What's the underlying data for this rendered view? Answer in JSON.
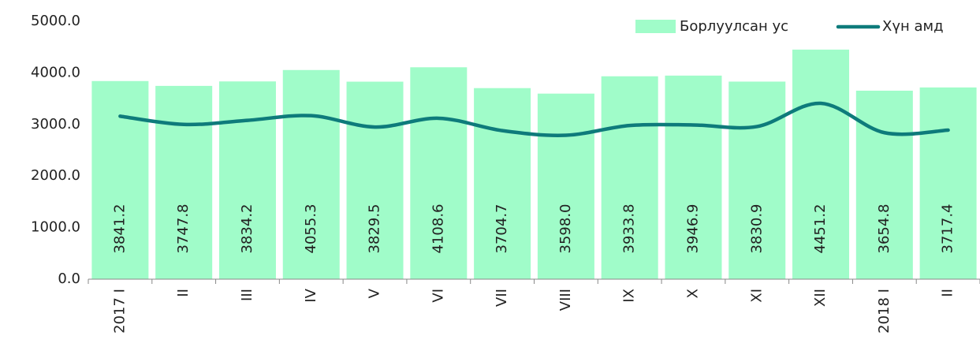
{
  "chart_data": {
    "type": "bar_line",
    "categories": [
      "2017 I",
      "II",
      "III",
      "IV",
      "V",
      "VI",
      "VII",
      "VIII",
      "IX",
      "X",
      "XI",
      "XII",
      "2018 I",
      "II"
    ],
    "series": [
      {
        "name": "Борлуулсан ус",
        "type": "bar",
        "color": "#a0fcc9",
        "values": [
          3841.2,
          3747.8,
          3834.2,
          4055.3,
          3829.5,
          4108.6,
          3704.7,
          3598.0,
          3933.8,
          3946.9,
          3830.9,
          4451.2,
          3654.8,
          3717.4
        ],
        "value_labels": [
          "3841.2",
          "3747.8",
          "3834.2",
          "4055.3",
          "3829.5",
          "4108.6",
          "3704.7",
          "3598.0",
          "3933.8",
          "3946.9",
          "3830.9",
          "4451.2",
          "3654.8",
          "3717.4"
        ]
      },
      {
        "name": "Хүн амд",
        "type": "line",
        "color": "#0e7b7b",
        "values": [
          3160,
          3000,
          3080,
          3170,
          2950,
          3120,
          2880,
          2790,
          2980,
          2990,
          2960,
          3410,
          2840,
          2890
        ]
      }
    ],
    "ylim": [
      0,
      5000
    ],
    "yticks": [
      {
        "value": 0,
        "label": "0.0"
      },
      {
        "value": 1000,
        "label": "1000.0"
      },
      {
        "value": 2000,
        "label": "2000.0"
      },
      {
        "value": 3000,
        "label": "3000.0"
      },
      {
        "value": 4000,
        "label": "4000.0"
      },
      {
        "value": 5000,
        "label": "5000.0"
      }
    ],
    "legend": "top-right",
    "grid": false
  }
}
